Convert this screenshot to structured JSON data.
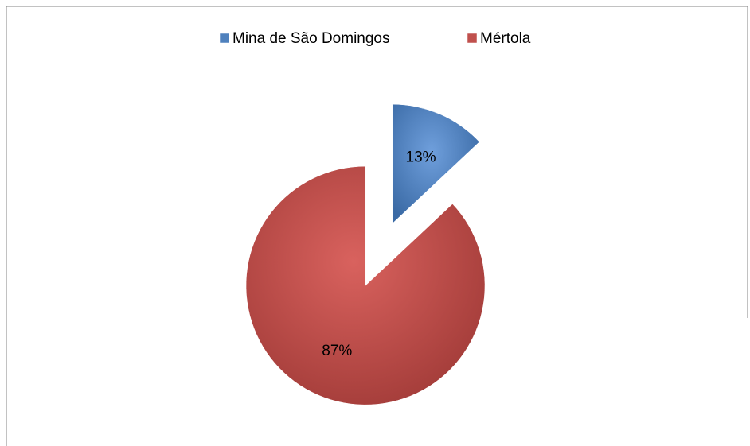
{
  "chart_data": {
    "type": "pie",
    "categories": [
      "Mina de São Domingos",
      "Mértola"
    ],
    "values": [
      13,
      87
    ],
    "value_labels": [
      "13%",
      "87%"
    ],
    "colors": [
      "#4f81bd",
      "#c0504d"
    ],
    "legend": "top"
  }
}
